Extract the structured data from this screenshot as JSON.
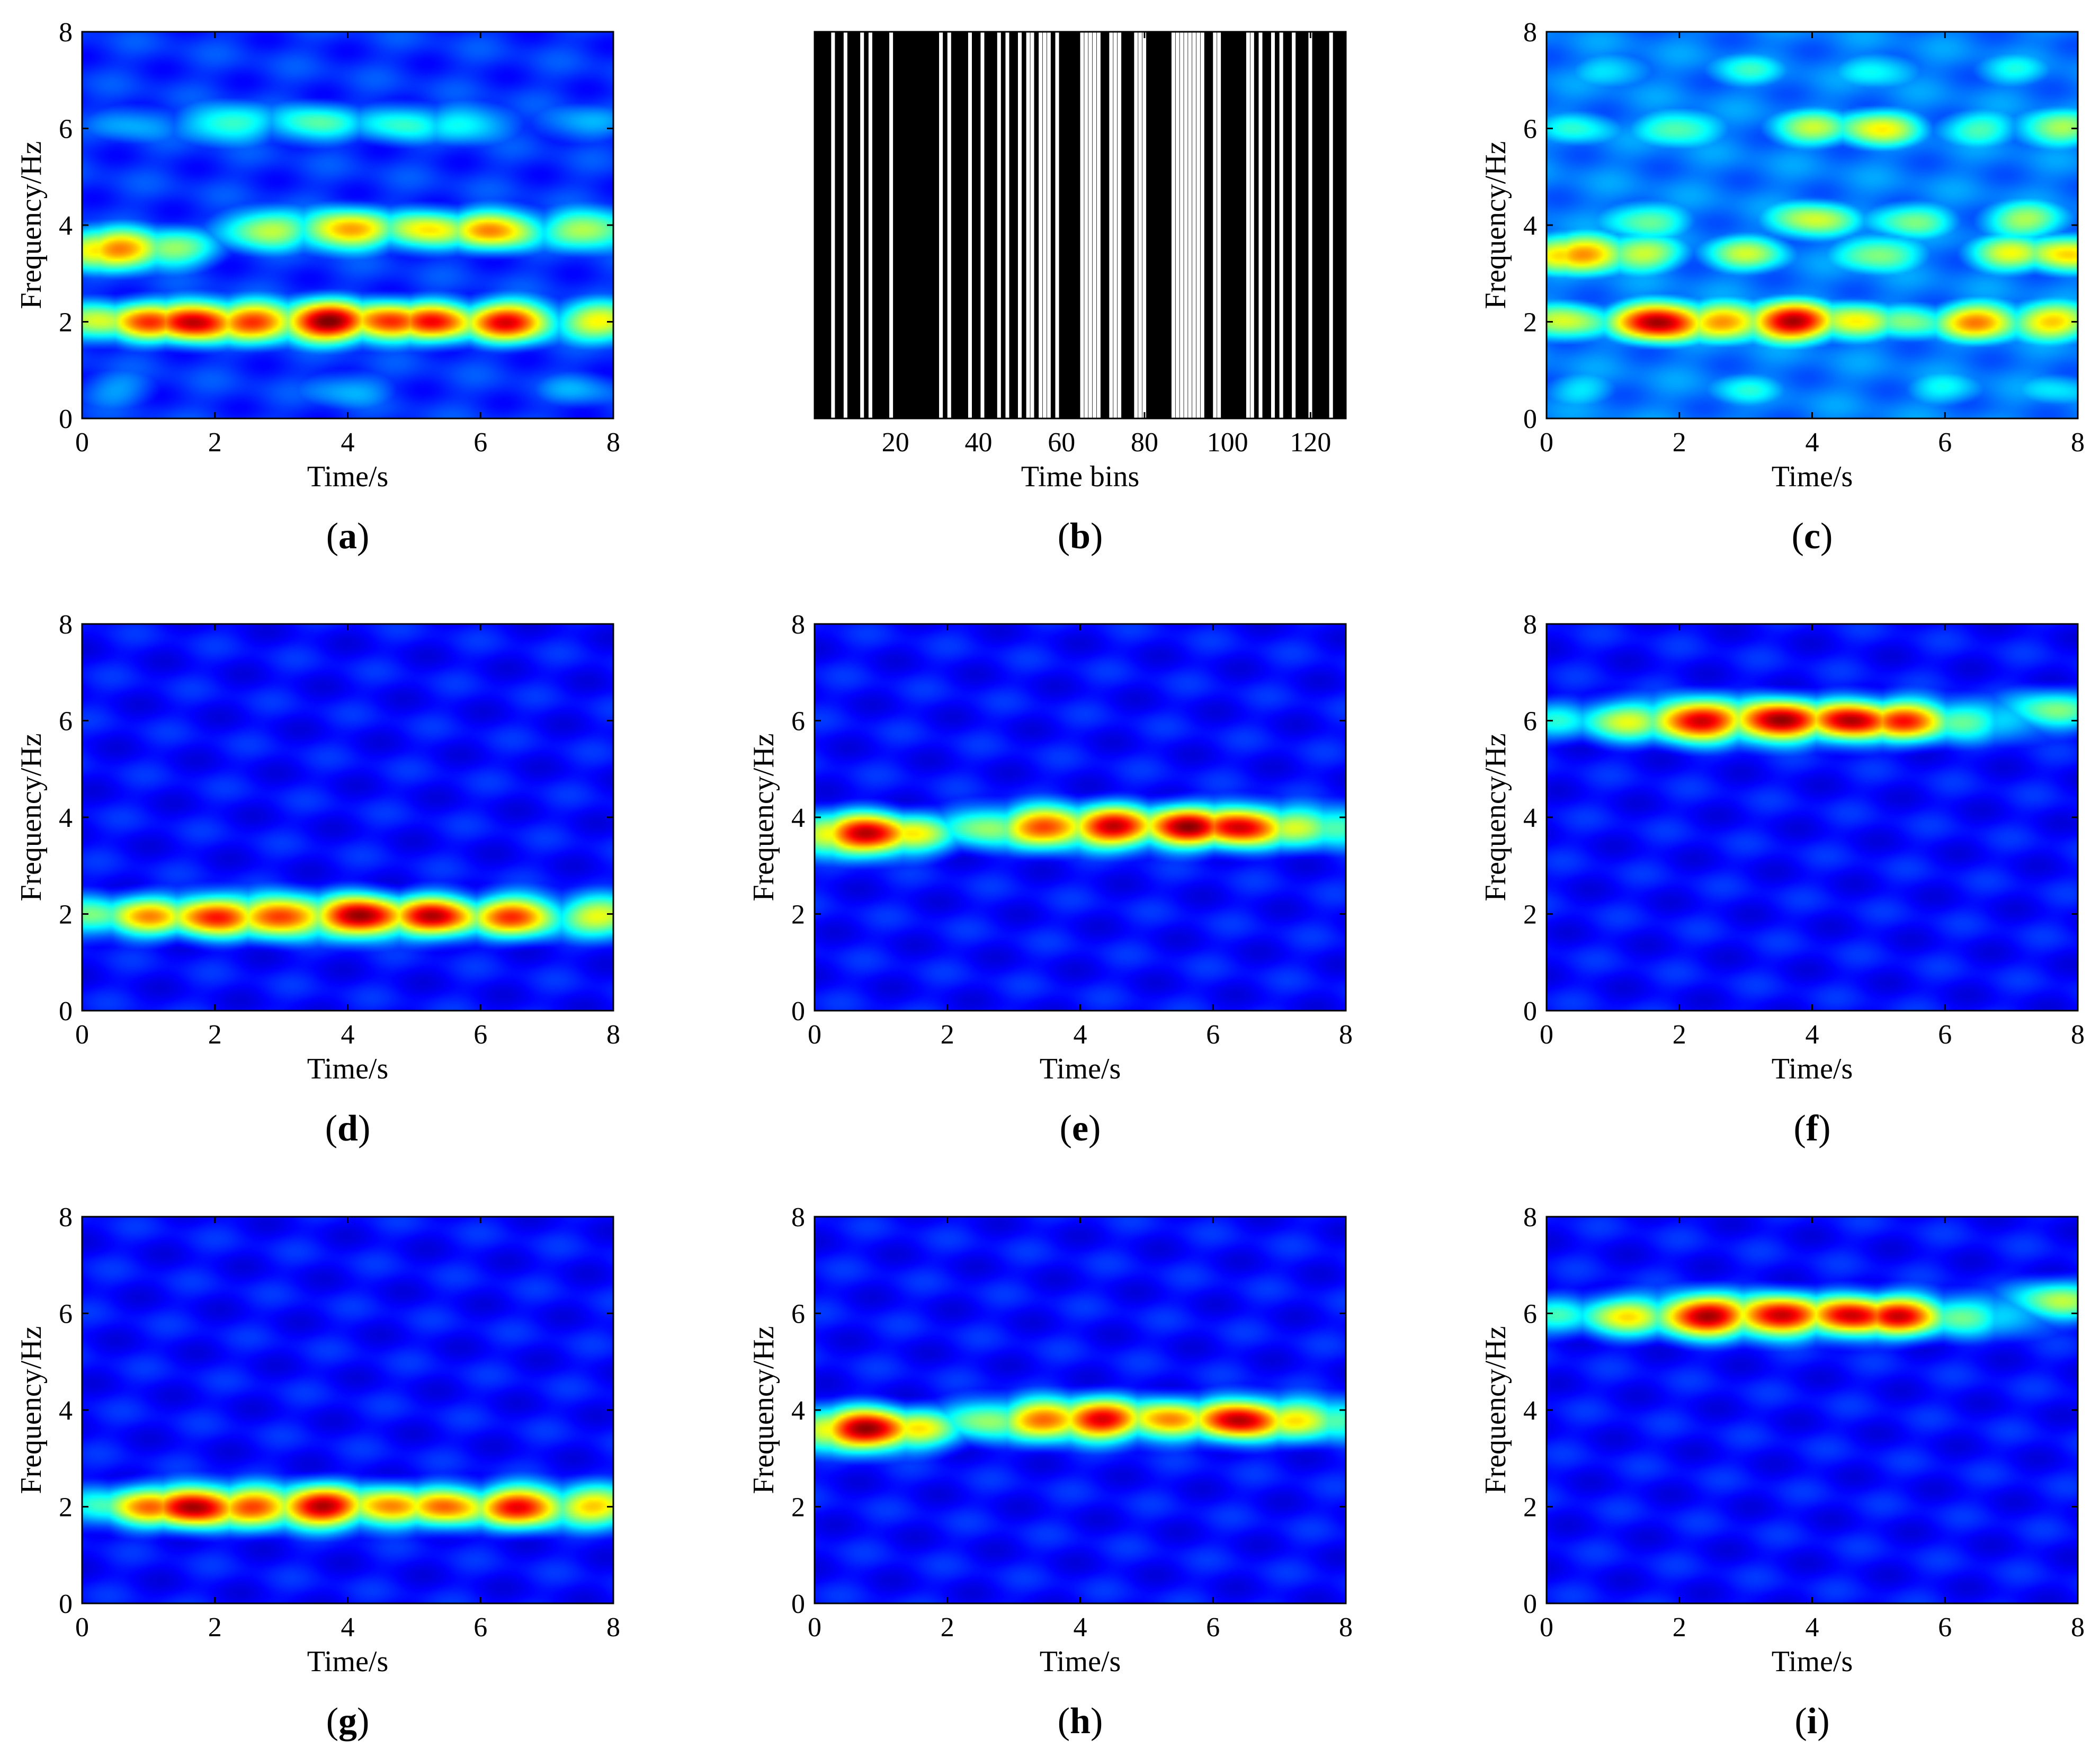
{
  "chart_data": [
    {
      "panel": "a",
      "type": "heatmap",
      "caption": "a",
      "xlabel": "Time/s",
      "ylabel": "Frequency/Hz",
      "xlim": [
        0,
        8
      ],
      "ylim": [
        0,
        8
      ],
      "xticks": [
        "0",
        "2",
        "4",
        "6",
        "8"
      ],
      "yticks": [
        "0",
        "2",
        "4",
        "6",
        "8"
      ],
      "colormap": "jet",
      "ridges": [
        {
          "freq_hz": 2.0,
          "points": [
            [
              0.3,
              0.55
            ],
            [
              1.0,
              0.78
            ],
            [
              1.7,
              0.95
            ],
            [
              2.6,
              0.82
            ],
            [
              3.7,
              1.0
            ],
            [
              4.6,
              0.82
            ],
            [
              5.3,
              0.84
            ],
            [
              6.4,
              0.88
            ],
            [
              7.8,
              0.6
            ]
          ]
        },
        {
          "freq_hz": 3.5,
          "points": [
            [
              0.2,
              0.62
            ],
            [
              0.6,
              0.74
            ],
            [
              1.3,
              0.5
            ]
          ]
        },
        {
          "freq_hz": 3.9,
          "points": [
            [
              2.8,
              0.55
            ],
            [
              4.0,
              0.72
            ],
            [
              5.2,
              0.62
            ],
            [
              6.2,
              0.72
            ],
            [
              7.6,
              0.55
            ]
          ]
        },
        {
          "freq_hz": 6.1,
          "points": [
            [
              0.8,
              0.25
            ],
            [
              2.2,
              0.42
            ],
            [
              3.5,
              0.42
            ],
            [
              4.8,
              0.38
            ],
            [
              5.8,
              0.35
            ],
            [
              7.5,
              0.25
            ]
          ]
        },
        {
          "freq_hz": 0.6,
          "points": [
            [
              0.5,
              0.22
            ],
            [
              4.0,
              0.25
            ],
            [
              7.5,
              0.22
            ]
          ]
        }
      ],
      "base_level": 0.1
    },
    {
      "panel": "b",
      "type": "heatmap",
      "caption": "b",
      "xlabel": "Time bins",
      "ylabel": "",
      "xlim": [
        0.5,
        128.5
      ],
      "xticks": [
        "20",
        "40",
        "60",
        "80",
        "100",
        "120"
      ],
      "colormap": "binary mask",
      "mask_on_bins": [
        5,
        8,
        12,
        14,
        19,
        31,
        33,
        38,
        41,
        45,
        47,
        50,
        52,
        53,
        55,
        56,
        57,
        59,
        65,
        66,
        67,
        68,
        69,
        72,
        73,
        74,
        78,
        79,
        80,
        87,
        88,
        89,
        90,
        91,
        92,
        93,
        94,
        97,
        98,
        105,
        106,
        108,
        111,
        113,
        116,
        120,
        125
      ]
    },
    {
      "panel": "c",
      "type": "heatmap",
      "caption": "c",
      "xlabel": "Time/s",
      "ylabel": "Frequency/Hz",
      "xlim": [
        0,
        8
      ],
      "ylim": [
        0,
        8
      ],
      "xticks": [
        "0",
        "2",
        "4",
        "6",
        "8"
      ],
      "yticks": [
        "0",
        "2",
        "4",
        "6",
        "8"
      ],
      "colormap": "jet",
      "ridges": [
        {
          "freq_hz": 2.0,
          "points": [
            [
              0.3,
              0.55
            ],
            [
              1.7,
              0.98
            ],
            [
              2.7,
              0.72
            ],
            [
              3.7,
              0.95
            ],
            [
              4.6,
              0.6
            ],
            [
              5.5,
              0.45
            ],
            [
              6.5,
              0.72
            ],
            [
              7.6,
              0.65
            ]
          ]
        },
        {
          "freq_hz": 3.4,
          "points": [
            [
              0.2,
              0.62
            ],
            [
              0.6,
              0.72
            ],
            [
              1.4,
              0.55
            ],
            [
              3.0,
              0.5
            ],
            [
              5.0,
              0.5
            ],
            [
              7.0,
              0.55
            ],
            [
              7.8,
              0.62
            ]
          ]
        },
        {
          "freq_hz": 4.1,
          "points": [
            [
              1.5,
              0.45
            ],
            [
              4.0,
              0.55
            ],
            [
              5.5,
              0.45
            ],
            [
              7.2,
              0.5
            ]
          ]
        },
        {
          "freq_hz": 6.0,
          "points": [
            [
              0.5,
              0.35
            ],
            [
              2.0,
              0.45
            ],
            [
              4.0,
              0.5
            ],
            [
              5.0,
              0.58
            ],
            [
              6.5,
              0.4
            ],
            [
              7.7,
              0.5
            ]
          ]
        },
        {
          "freq_hz": 7.2,
          "points": [
            [
              1.0,
              0.32
            ],
            [
              3.0,
              0.35
            ],
            [
              5.0,
              0.35
            ],
            [
              7.0,
              0.32
            ]
          ]
        },
        {
          "freq_hz": 0.6,
          "points": [
            [
              0.5,
              0.3
            ],
            [
              3.0,
              0.32
            ],
            [
              6.0,
              0.32
            ],
            [
              7.7,
              0.3
            ]
          ]
        }
      ],
      "base_level": 0.18
    },
    {
      "panel": "d",
      "type": "heatmap",
      "caption": "d",
      "xlabel": "Time/s",
      "ylabel": "Frequency/Hz",
      "xlim": [
        0,
        8
      ],
      "ylim": [
        0,
        8
      ],
      "xticks": [
        "0",
        "2",
        "4",
        "6",
        "8"
      ],
      "yticks": [
        "0",
        "2",
        "4",
        "6",
        "8"
      ],
      "colormap": "jet",
      "ridges": [
        {
          "freq_hz": 1.95,
          "points": [
            [
              0.2,
              0.45
            ],
            [
              1.0,
              0.68
            ],
            [
              2.0,
              0.85
            ],
            [
              3.0,
              0.85
            ],
            [
              4.2,
              1.0
            ],
            [
              5.3,
              0.92
            ],
            [
              6.5,
              0.8
            ],
            [
              7.8,
              0.58
            ]
          ]
        }
      ],
      "base_level": 0.06
    },
    {
      "panel": "e",
      "type": "heatmap",
      "caption": "e",
      "xlabel": "Time/s",
      "ylabel": "Frequency/Hz",
      "xlim": [
        0,
        8
      ],
      "ylim": [
        0,
        8
      ],
      "xticks": [
        "0",
        "2",
        "4",
        "6",
        "8"
      ],
      "yticks": [
        "0",
        "2",
        "4",
        "6",
        "8"
      ],
      "colormap": "jet",
      "ridges": [
        {
          "freq_hz": 3.65,
          "points": [
            [
              0.2,
              0.6
            ],
            [
              0.8,
              0.95
            ],
            [
              1.4,
              0.6
            ]
          ]
        },
        {
          "freq_hz": 3.8,
          "points": [
            [
              2.6,
              0.5
            ],
            [
              3.5,
              0.82
            ],
            [
              4.5,
              0.92
            ],
            [
              5.6,
              0.95
            ],
            [
              6.4,
              0.92
            ],
            [
              7.3,
              0.55
            ],
            [
              7.8,
              0.45
            ]
          ]
        }
      ],
      "base_level": 0.06
    },
    {
      "panel": "f",
      "type": "heatmap",
      "caption": "f",
      "xlabel": "Time/s",
      "ylabel": "Frequency/Hz",
      "xlim": [
        0,
        8
      ],
      "ylim": [
        0,
        8
      ],
      "xticks": [
        "0",
        "2",
        "4",
        "6",
        "8"
      ],
      "yticks": [
        "0",
        "2",
        "4",
        "6",
        "8"
      ],
      "colormap": "jet",
      "ridges": [
        {
          "freq_hz": 6.0,
          "points": [
            [
              0.2,
              0.32
            ],
            [
              1.2,
              0.55
            ],
            [
              2.3,
              0.95
            ],
            [
              3.5,
              1.0
            ],
            [
              4.6,
              0.95
            ],
            [
              5.4,
              0.82
            ],
            [
              6.2,
              0.45
            ],
            [
              7.0,
              0.3
            ]
          ]
        },
        {
          "freq_hz": 6.2,
          "points": [
            [
              7.6,
              0.45
            ]
          ]
        }
      ],
      "base_level": 0.06
    },
    {
      "panel": "g",
      "type": "heatmap",
      "caption": "g",
      "xlabel": "Time/s",
      "ylabel": "Frequency/Hz",
      "xlim": [
        0,
        8
      ],
      "ylim": [
        0,
        8
      ],
      "xticks": [
        "0",
        "2",
        "4",
        "6",
        "8"
      ],
      "yticks": [
        "0",
        "2",
        "4",
        "6",
        "8"
      ],
      "colormap": "jet",
      "ridges": [
        {
          "freq_hz": 2.0,
          "points": [
            [
              0.4,
              0.4
            ],
            [
              1.0,
              0.72
            ],
            [
              1.7,
              0.98
            ],
            [
              2.6,
              0.8
            ],
            [
              3.6,
              0.95
            ],
            [
              4.6,
              0.72
            ],
            [
              5.5,
              0.75
            ],
            [
              6.6,
              0.88
            ],
            [
              7.7,
              0.65
            ]
          ]
        }
      ],
      "base_level": 0.06
    },
    {
      "panel": "h",
      "type": "heatmap",
      "caption": "h",
      "xlabel": "Time/s",
      "ylabel": "Frequency/Hz",
      "xlim": [
        0,
        8
      ],
      "ylim": [
        0,
        8
      ],
      "xticks": [
        "0",
        "2",
        "4",
        "6",
        "8"
      ],
      "yticks": [
        "0",
        "2",
        "4",
        "6",
        "8"
      ],
      "colormap": "jet",
      "ridges": [
        {
          "freq_hz": 3.6,
          "points": [
            [
              0.2,
              0.6
            ],
            [
              0.8,
              1.0
            ],
            [
              1.5,
              0.6
            ]
          ]
        },
        {
          "freq_hz": 3.8,
          "points": [
            [
              2.6,
              0.5
            ],
            [
              3.5,
              0.78
            ],
            [
              4.3,
              0.9
            ],
            [
              5.3,
              0.72
            ],
            [
              6.4,
              0.95
            ],
            [
              7.3,
              0.62
            ],
            [
              7.8,
              0.45
            ]
          ]
        }
      ],
      "base_level": 0.06
    },
    {
      "panel": "i",
      "type": "heatmap",
      "caption": "i",
      "xlabel": "Time/s",
      "ylabel": "Frequency/Hz",
      "xlim": [
        0,
        8
      ],
      "ylim": [
        0,
        8
      ],
      "xticks": [
        "0",
        "2",
        "4",
        "6",
        "8"
      ],
      "yticks": [
        "0",
        "2",
        "4",
        "6",
        "8"
      ],
      "colormap": "jet",
      "ridges": [
        {
          "freq_hz": 5.95,
          "points": [
            [
              0.2,
              0.35
            ],
            [
              1.2,
              0.6
            ],
            [
              2.4,
              0.98
            ],
            [
              3.5,
              0.95
            ],
            [
              4.6,
              0.92
            ],
            [
              5.3,
              0.88
            ],
            [
              6.2,
              0.45
            ],
            [
              7.0,
              0.3
            ]
          ]
        },
        {
          "freq_hz": 6.25,
          "points": [
            [
              7.7,
              0.5
            ]
          ]
        }
      ],
      "base_level": 0.06
    }
  ]
}
